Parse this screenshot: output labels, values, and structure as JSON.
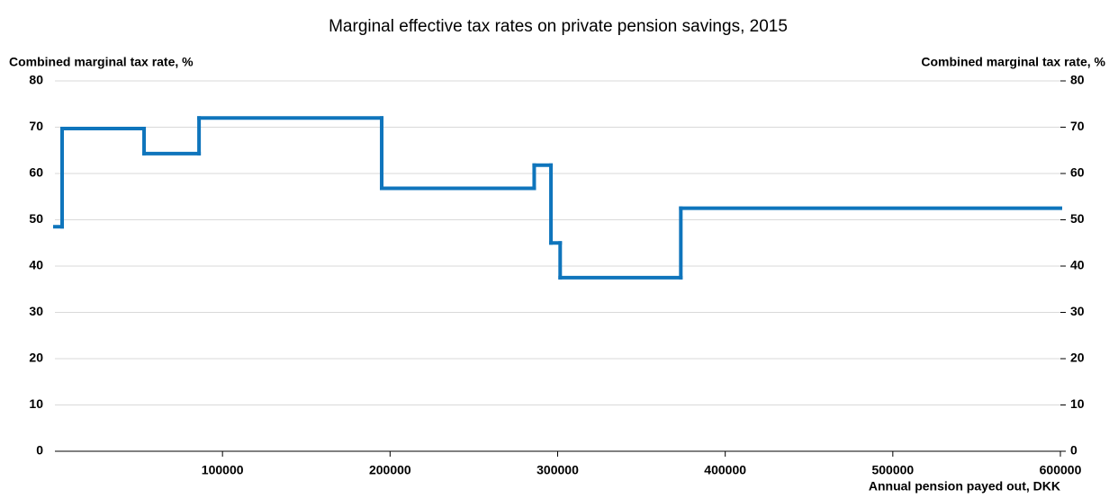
{
  "chart_data": {
    "type": "line",
    "step": "post",
    "title": "Marginal effective tax rates on private pension savings, 2015",
    "ylabel": "Combined marginal tax rate, %",
    "y2label": "Combined marginal tax rate, %",
    "xlabel": "Annual pension payed out, DKK",
    "x": [
      0,
      4300,
      53200,
      86000,
      195000,
      286000,
      296000,
      301500,
      373500
    ],
    "series": [
      {
        "name": "Combined marginal tax rate",
        "color": "#0f75bc",
        "values": [
          48.5,
          69.7,
          64.3,
          72,
          56.8,
          61.8,
          45,
          37.5,
          52.5
        ]
      }
    ],
    "xlim": [
      0,
      600000
    ],
    "xticks": [
      100000,
      200000,
      300000,
      400000,
      500000,
      600000
    ],
    "ylim": [
      0,
      80
    ],
    "yticks": [
      0,
      10,
      20,
      30,
      40,
      50,
      60,
      70,
      80
    ],
    "y2lim": [
      0,
      80
    ],
    "y2ticks": [
      0,
      10,
      20,
      30,
      40,
      50,
      60,
      70,
      80
    ],
    "grid": true
  }
}
